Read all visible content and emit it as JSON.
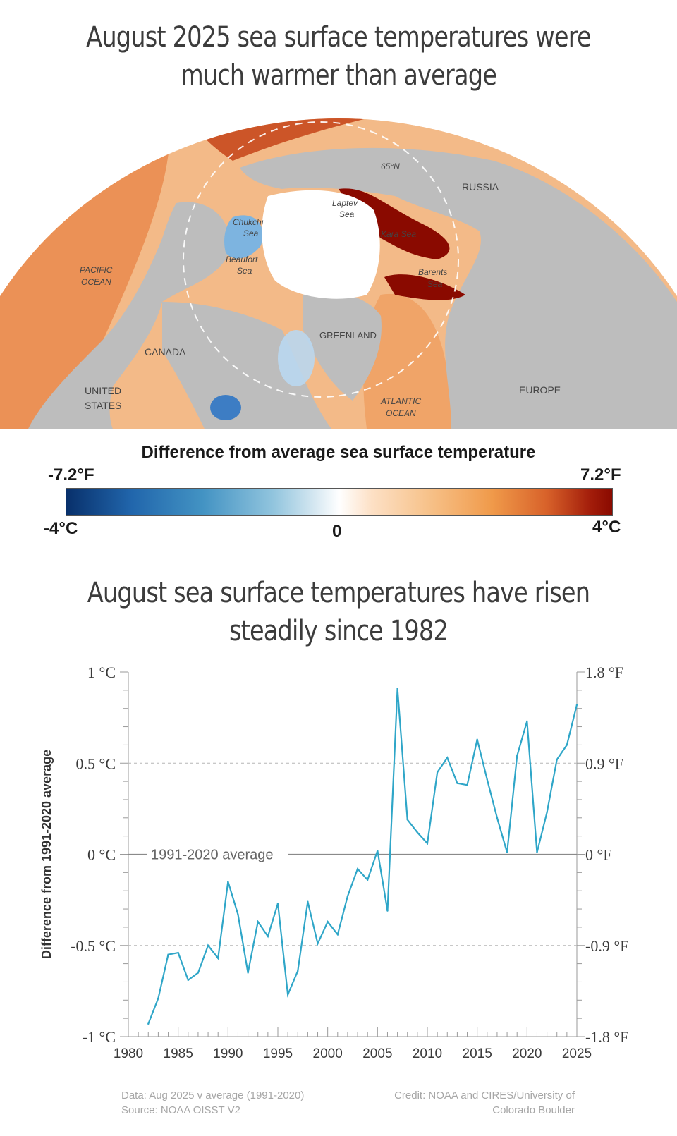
{
  "map": {
    "title": "August 2025 sea surface temperatures were much warmer than average",
    "labels": {
      "lat": "65°N",
      "russia": "RUSSIA",
      "laptev": [
        "Laptev",
        "Sea"
      ],
      "chukchi": [
        "Chukchi",
        "Sea"
      ],
      "kara": "Kara Sea",
      "beaufort": [
        "Beaufort",
        "Sea"
      ],
      "pacific": [
        "PACIFIC",
        "OCEAN"
      ],
      "barents": [
        "Barents",
        "Sea"
      ],
      "greenland": "GREENLAND",
      "canada": "CANADA",
      "us": [
        "UNITED",
        "STATES"
      ],
      "europe": "EUROPE",
      "atlantic": [
        "ATLANTIC",
        "OCEAN"
      ]
    },
    "colors": {
      "land": "#bdbdbd",
      "ice": "#ffffff",
      "warm": "#e67a3c",
      "hot": "#8a0a00",
      "cool": "#6aa6d6"
    }
  },
  "legend": {
    "title": "Difference from average sea surface temperature",
    "left_f": "-7.2°F",
    "right_f": "7.2°F",
    "left_c": "-4°C",
    "mid": "0",
    "right_c": "4°C"
  },
  "chart_data": {
    "type": "line",
    "title": "August sea surface temperatures have risen steadily since 1982",
    "ylabel": "Difference from 1991-2020 average",
    "xlim": [
      1980,
      2025
    ],
    "ylim": [
      -1,
      1
    ],
    "x_ticks": [
      "1980",
      "1985",
      "1990",
      "1995",
      "2000",
      "2005",
      "2010",
      "2015",
      "2020",
      "2025"
    ],
    "y_ticks_left": [
      "1 °C",
      "0.5 °C",
      "0 °C",
      "-0.5 °C",
      "-1 °C"
    ],
    "y_ticks_right": [
      "1.8 °F",
      "0.9 °F",
      "0 °F",
      "-0.9 °F",
      "-1.8 °F"
    ],
    "baseline_label": "1991-2020 average",
    "grid": "dashed at ±0.5",
    "color": "#2fa6c8",
    "series": [
      {
        "x": [
          1982,
          1983,
          1984,
          1985,
          1986,
          1987,
          1988,
          1989,
          1990,
          1991,
          1992,
          1993,
          1994,
          1995,
          1996,
          1997,
          1998,
          1999,
          2000,
          2001,
          2002,
          2003,
          2004,
          2005,
          2006,
          2007,
          2008,
          2009,
          2010,
          2011,
          2012,
          2013,
          2014,
          2015,
          2016,
          2017,
          2018,
          2019,
          2020,
          2021,
          2022,
          2023,
          2024,
          2025
        ],
        "values": [
          -0.93,
          -0.79,
          -0.55,
          -0.54,
          -0.69,
          -0.65,
          -0.5,
          -0.57,
          -0.15,
          -0.33,
          -0.65,
          -0.37,
          -0.45,
          -0.27,
          -0.77,
          -0.64,
          -0.26,
          -0.49,
          -0.37,
          -0.44,
          -0.23,
          -0.08,
          -0.14,
          0.02,
          -0.31,
          0.91,
          0.19,
          0.12,
          0.06,
          0.45,
          0.53,
          0.39,
          0.38,
          0.63,
          0.41,
          0.2,
          0.01,
          0.54,
          0.73,
          0.01,
          0.23,
          0.52,
          0.6,
          0.82
        ]
      }
    ]
  },
  "footer": {
    "data": "Data: Aug 2025 v average (1991-2020)",
    "source": "Source: NOAA OISST V2",
    "credit1": "Credit: NOAA and CIRES/University of",
    "credit2": "Colorado Boulder"
  }
}
